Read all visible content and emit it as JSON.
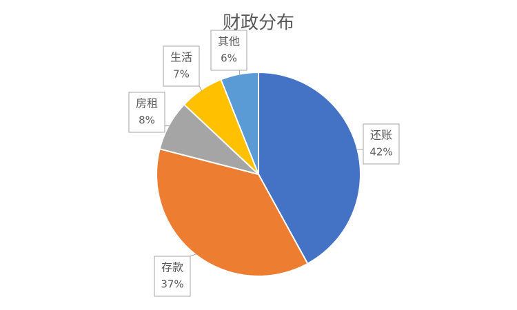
{
  "chart_data": {
    "type": "pie",
    "title": "财政分布",
    "categories": [
      "还账",
      "存款",
      "房租",
      "生活",
      "其他"
    ],
    "values": [
      42,
      37,
      8,
      7,
      6
    ],
    "value_labels": [
      "42%",
      "37%",
      "8%",
      "7%",
      "6%"
    ],
    "colors": [
      "#4472c4",
      "#ed7d31",
      "#a5a5a5",
      "#ffc000",
      "#5b9bd5"
    ]
  }
}
